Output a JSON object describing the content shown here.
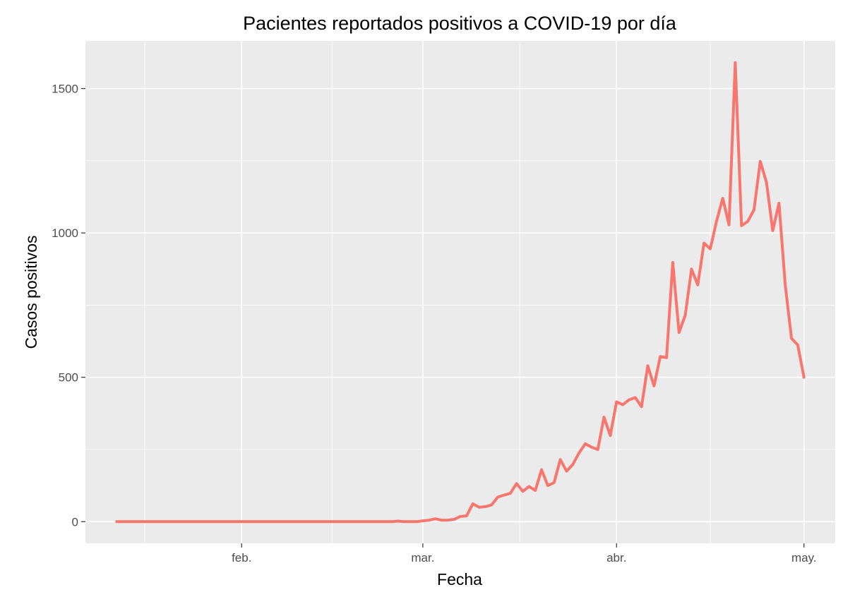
{
  "chart_data": {
    "type": "line",
    "title": "Pacientes reportados positivos a COVID-19 por día",
    "xlabel": "Fecha",
    "ylabel": "Casos positivos",
    "x_ticks": [
      {
        "label": "feb.",
        "date": "2020-02-01"
      },
      {
        "label": "mar.",
        "date": "2020-03-01"
      },
      {
        "label": "abr.",
        "date": "2020-04-01"
      },
      {
        "label": "may.",
        "date": "2020-05-01"
      }
    ],
    "y_ticks": [
      0,
      500,
      1000,
      1500
    ],
    "xlim": [
      "2020-01-07",
      "2020-05-06"
    ],
    "ylim": [
      -75,
      1665
    ],
    "grid": true,
    "background": "#ebebeb",
    "line_color": "#f8766d",
    "series": [
      {
        "x": [
          "2020-01-12",
          "2020-01-13",
          "2020-01-14",
          "2020-01-15",
          "2020-01-16",
          "2020-01-17",
          "2020-01-18",
          "2020-01-19",
          "2020-01-20",
          "2020-01-21",
          "2020-01-22",
          "2020-01-23",
          "2020-01-24",
          "2020-01-25",
          "2020-01-26",
          "2020-01-27",
          "2020-01-28",
          "2020-01-29",
          "2020-01-30",
          "2020-01-31",
          "2020-02-01",
          "2020-02-02",
          "2020-02-03",
          "2020-02-04",
          "2020-02-05",
          "2020-02-06",
          "2020-02-07",
          "2020-02-08",
          "2020-02-09",
          "2020-02-10",
          "2020-02-11",
          "2020-02-12",
          "2020-02-13",
          "2020-02-14",
          "2020-02-15",
          "2020-02-16",
          "2020-02-17",
          "2020-02-18",
          "2020-02-19",
          "2020-02-20",
          "2020-02-21",
          "2020-02-22",
          "2020-02-23",
          "2020-02-24",
          "2020-02-25",
          "2020-02-26",
          "2020-02-27",
          "2020-02-28",
          "2020-02-29",
          "2020-03-01",
          "2020-03-02",
          "2020-03-03",
          "2020-03-04",
          "2020-03-05",
          "2020-03-06",
          "2020-03-07",
          "2020-03-08",
          "2020-03-09",
          "2020-03-10",
          "2020-03-11",
          "2020-03-12",
          "2020-03-13",
          "2020-03-14",
          "2020-03-15",
          "2020-03-16",
          "2020-03-17",
          "2020-03-18",
          "2020-03-19",
          "2020-03-20",
          "2020-03-21",
          "2020-03-22",
          "2020-03-23",
          "2020-03-24",
          "2020-03-25",
          "2020-03-26",
          "2020-03-27",
          "2020-03-28",
          "2020-03-29",
          "2020-03-30",
          "2020-03-31",
          "2020-04-01",
          "2020-04-02",
          "2020-04-03",
          "2020-04-04",
          "2020-04-05",
          "2020-04-06",
          "2020-04-07",
          "2020-04-08",
          "2020-04-09",
          "2020-04-10",
          "2020-04-11",
          "2020-04-12",
          "2020-04-13",
          "2020-04-14",
          "2020-04-15",
          "2020-04-16",
          "2020-04-17",
          "2020-04-18",
          "2020-04-19",
          "2020-04-20",
          "2020-04-21",
          "2020-04-22",
          "2020-04-23",
          "2020-04-24",
          "2020-04-25",
          "2020-04-26",
          "2020-04-27",
          "2020-04-28",
          "2020-04-29",
          "2020-04-30",
          "2020-05-01"
        ],
        "y": [
          0,
          0,
          0,
          0,
          0,
          0,
          0,
          0,
          0,
          0,
          0,
          0,
          0,
          0,
          0,
          0,
          0,
          0,
          0,
          0,
          0,
          0,
          0,
          0,
          0,
          0,
          0,
          0,
          0,
          0,
          0,
          0,
          0,
          0,
          0,
          0,
          0,
          0,
          0,
          0,
          0,
          0,
          0,
          0,
          0,
          2,
          0,
          0,
          0,
          3,
          5,
          10,
          5,
          5,
          8,
          18,
          20,
          62,
          50,
          52,
          58,
          85,
          92,
          98,
          132,
          105,
          122,
          108,
          180,
          125,
          135,
          215,
          175,
          198,
          238,
          270,
          258,
          250,
          362,
          298,
          415,
          405,
          422,
          430,
          398,
          540,
          470,
          572,
          568,
          898,
          655,
          715,
          875,
          820,
          965,
          945,
          1040,
          1120,
          1028,
          1590,
          1025,
          1040,
          1080,
          1248,
          1175,
          1008,
          1103,
          820,
          635,
          612,
          500
        ]
      }
    ]
  }
}
